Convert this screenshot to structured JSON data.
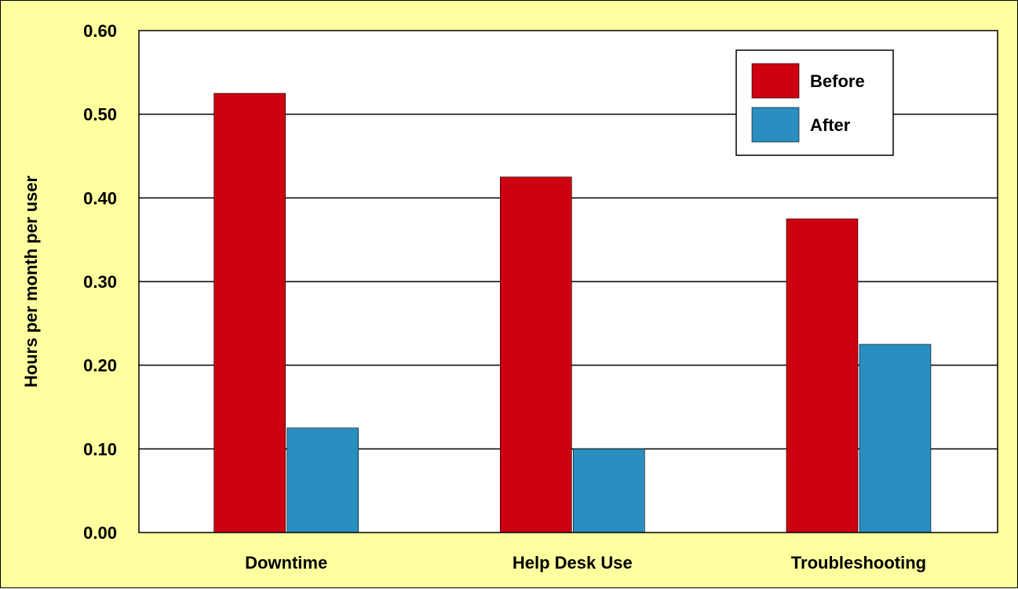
{
  "chart_data": {
    "type": "bar",
    "categories": [
      "Downtime",
      "Help Desk Use",
      "Troubleshooting"
    ],
    "series": [
      {
        "name": "Before",
        "values": [
          0.525,
          0.425,
          0.375
        ]
      },
      {
        "name": "After",
        "values": [
          0.125,
          0.1,
          0.225
        ]
      }
    ],
    "title": "",
    "xlabel": "",
    "ylabel": "Hours per month per user",
    "ylim": [
      0,
      0.6
    ],
    "yticks": [
      "0.00",
      "0.10",
      "0.20",
      "0.30",
      "0.40",
      "0.50",
      "0.60"
    ],
    "grid": true,
    "legend_position": "top-right"
  },
  "colors": {
    "background": "#ffffa0",
    "plot_background": "#ffffff",
    "before": "#cc0010",
    "after": "#2a8ec0"
  }
}
